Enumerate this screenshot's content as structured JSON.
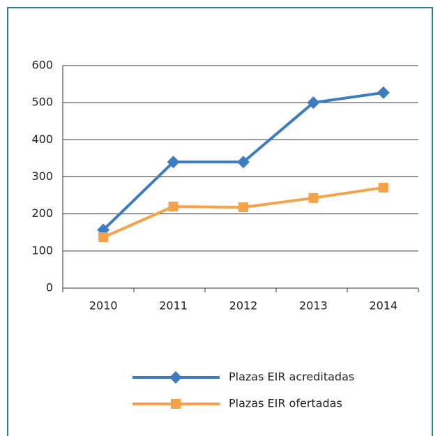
{
  "chart_data": {
    "type": "line",
    "categories": [
      "2010",
      "2011",
      "2012",
      "2013",
      "2014"
    ],
    "series": [
      {
        "name": "Plazas EIR acreditadas",
        "color": "#3e7cc1",
        "marker": "diamond",
        "values": [
          157,
          340,
          340,
          500,
          527
        ]
      },
      {
        "name": "Plazas EIR ofertadas",
        "color": "#f5a34a",
        "marker": "square",
        "values": [
          137,
          220,
          218,
          243,
          271
        ]
      }
    ],
    "ylim": [
      0,
      600
    ],
    "yticks": [
      0,
      100,
      200,
      300,
      400,
      500,
      600
    ],
    "grid": true,
    "legend": "bottom"
  }
}
